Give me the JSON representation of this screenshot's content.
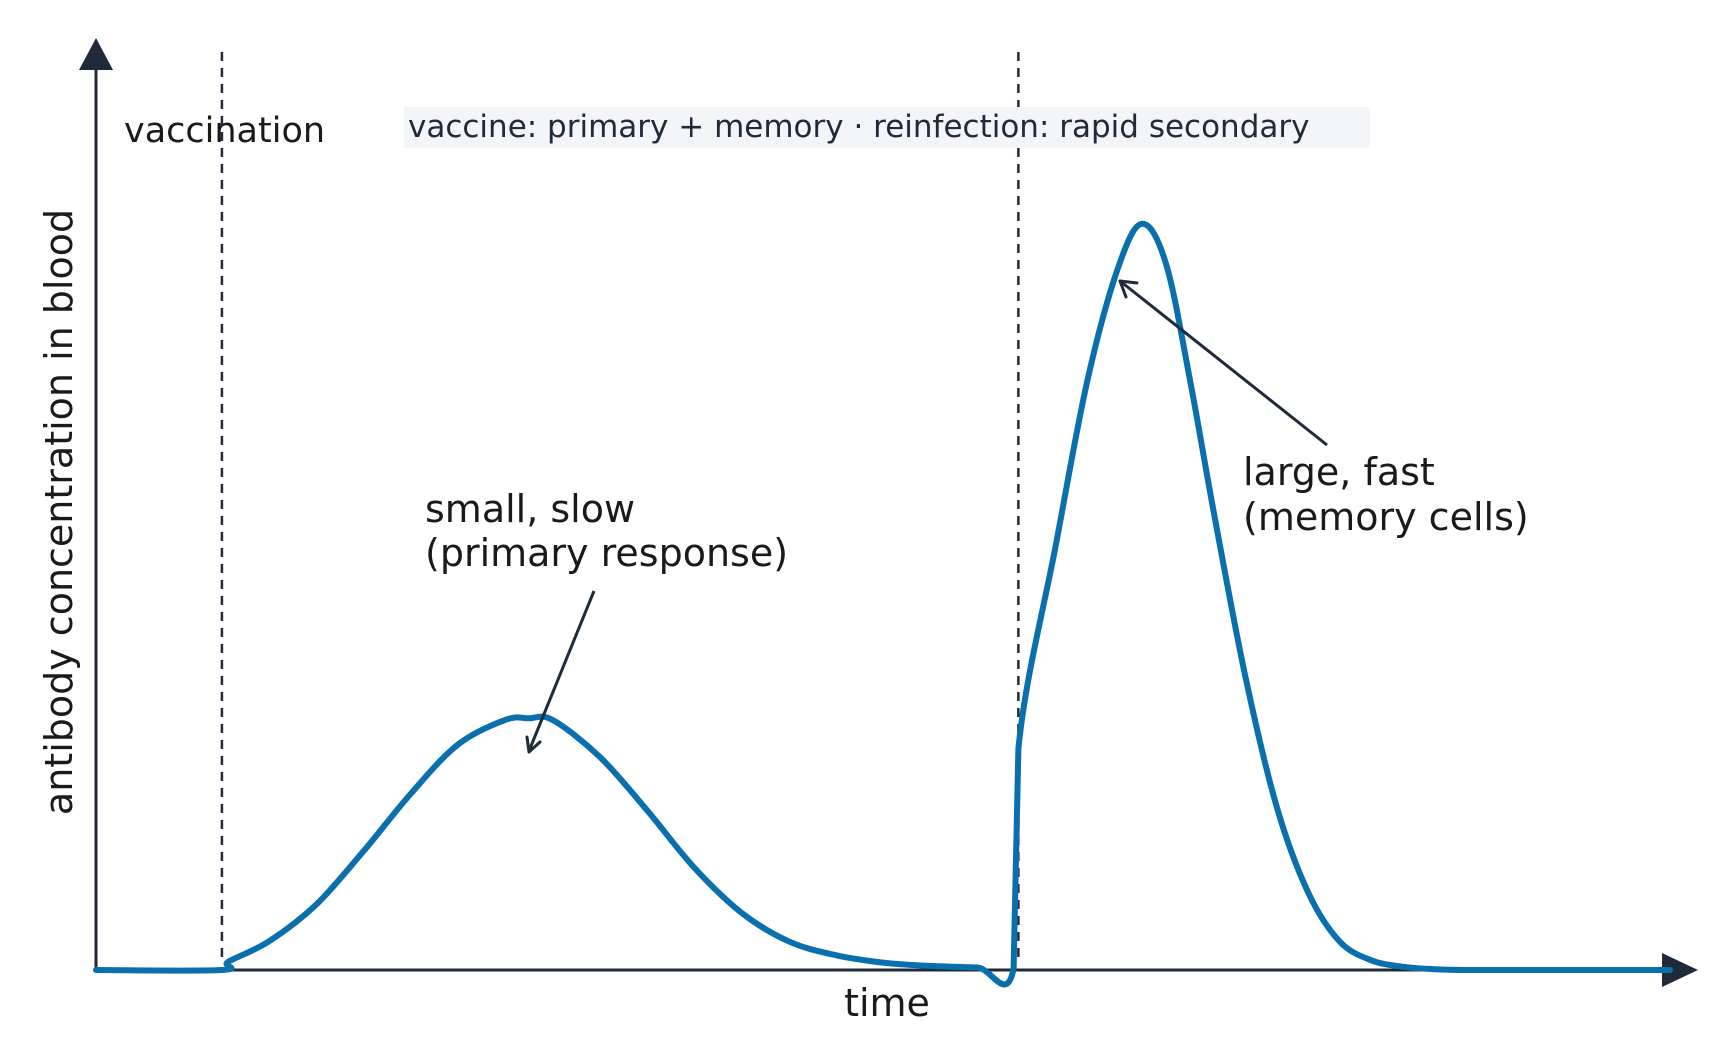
{
  "chart_data": {
    "type": "line",
    "xlabel": "time",
    "ylabel": "antibody concentration in blood",
    "xlim": [
      0,
      100
    ],
    "ylim": [
      0,
      100
    ],
    "grid": false,
    "legend": "none",
    "series": [
      {
        "color": "#0a6fad",
        "x": [
          0,
          8,
          8.4,
          11,
          14,
          17,
          20,
          23,
          26,
          27.5,
          29,
          32,
          35,
          38,
          41,
          44,
          47,
          50,
          53,
          56,
          58.3,
          58.6,
          61,
          63,
          65,
          66.5,
          68,
          69.5,
          71,
          73,
          75,
          77,
          79,
          81,
          83,
          85,
          87,
          89,
          91,
          93,
          95,
          97,
          100
        ],
        "y": [
          0,
          0,
          1,
          3.5,
          8,
          14.5,
          21.5,
          27.5,
          30.5,
          30.7,
          30.5,
          26,
          19.5,
          12.5,
          7,
          3.5,
          1.8,
          0.9,
          0.5,
          0.3,
          0.2,
          27,
          52,
          72,
          86,
          91,
          86,
          72,
          56,
          36,
          20,
          9.5,
          3.5,
          1.2,
          0.4,
          0.1,
          0,
          0,
          0,
          0,
          0,
          0,
          0
        ]
      }
    ],
    "vlines": [
      {
        "x": 8,
        "label": "vaccination"
      },
      {
        "x": 58.6,
        "label": ""
      }
    ],
    "annotations": [
      {
        "text_lines": [
          "small, slow",
          "(primary response)"
        ],
        "x": 27.5,
        "y": 31
      },
      {
        "text_lines": [
          "large, fast",
          "(memory cells)"
        ],
        "x": 64.5,
        "y": 85
      }
    ],
    "info_box": "vaccine: primary + memory  ·  reinfection: rapid secondary"
  },
  "colors": {
    "curve": "#0a6fad",
    "axis": "#1f2a3a",
    "info_background": "#f3f5f8"
  }
}
